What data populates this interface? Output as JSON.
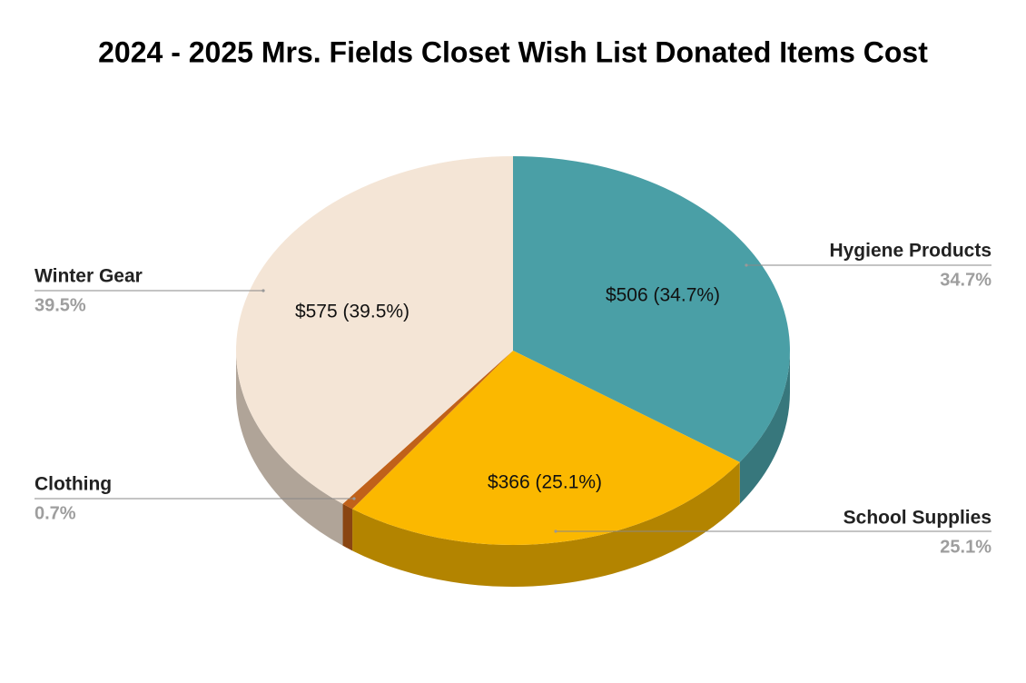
{
  "chart_data": {
    "type": "pie",
    "title": "2024 - 2025  Mrs. Fields Closet  Wish List Donated Items Cost",
    "categories": [
      "Hygiene Products",
      "School Supplies",
      "Clothing",
      "Winter Gear"
    ],
    "values": [
      506,
      366,
      10,
      575
    ],
    "value_labels": [
      "$506 (34.7%)",
      "$366 (25.1%)",
      null,
      "$575 (39.5%)"
    ],
    "percents": [
      34.7,
      25.1,
      0.7,
      39.5
    ],
    "percent_labels": [
      "34.7%",
      "25.1%",
      "0.7%",
      "39.5%"
    ],
    "colors": [
      "#4a9fa6",
      "#fbb800",
      "#c0611a",
      "#f4e5d6"
    ],
    "side_colors": [
      "#37777c",
      "#b38400",
      "#8a4512",
      "#b0a498"
    ],
    "three_d": true
  }
}
